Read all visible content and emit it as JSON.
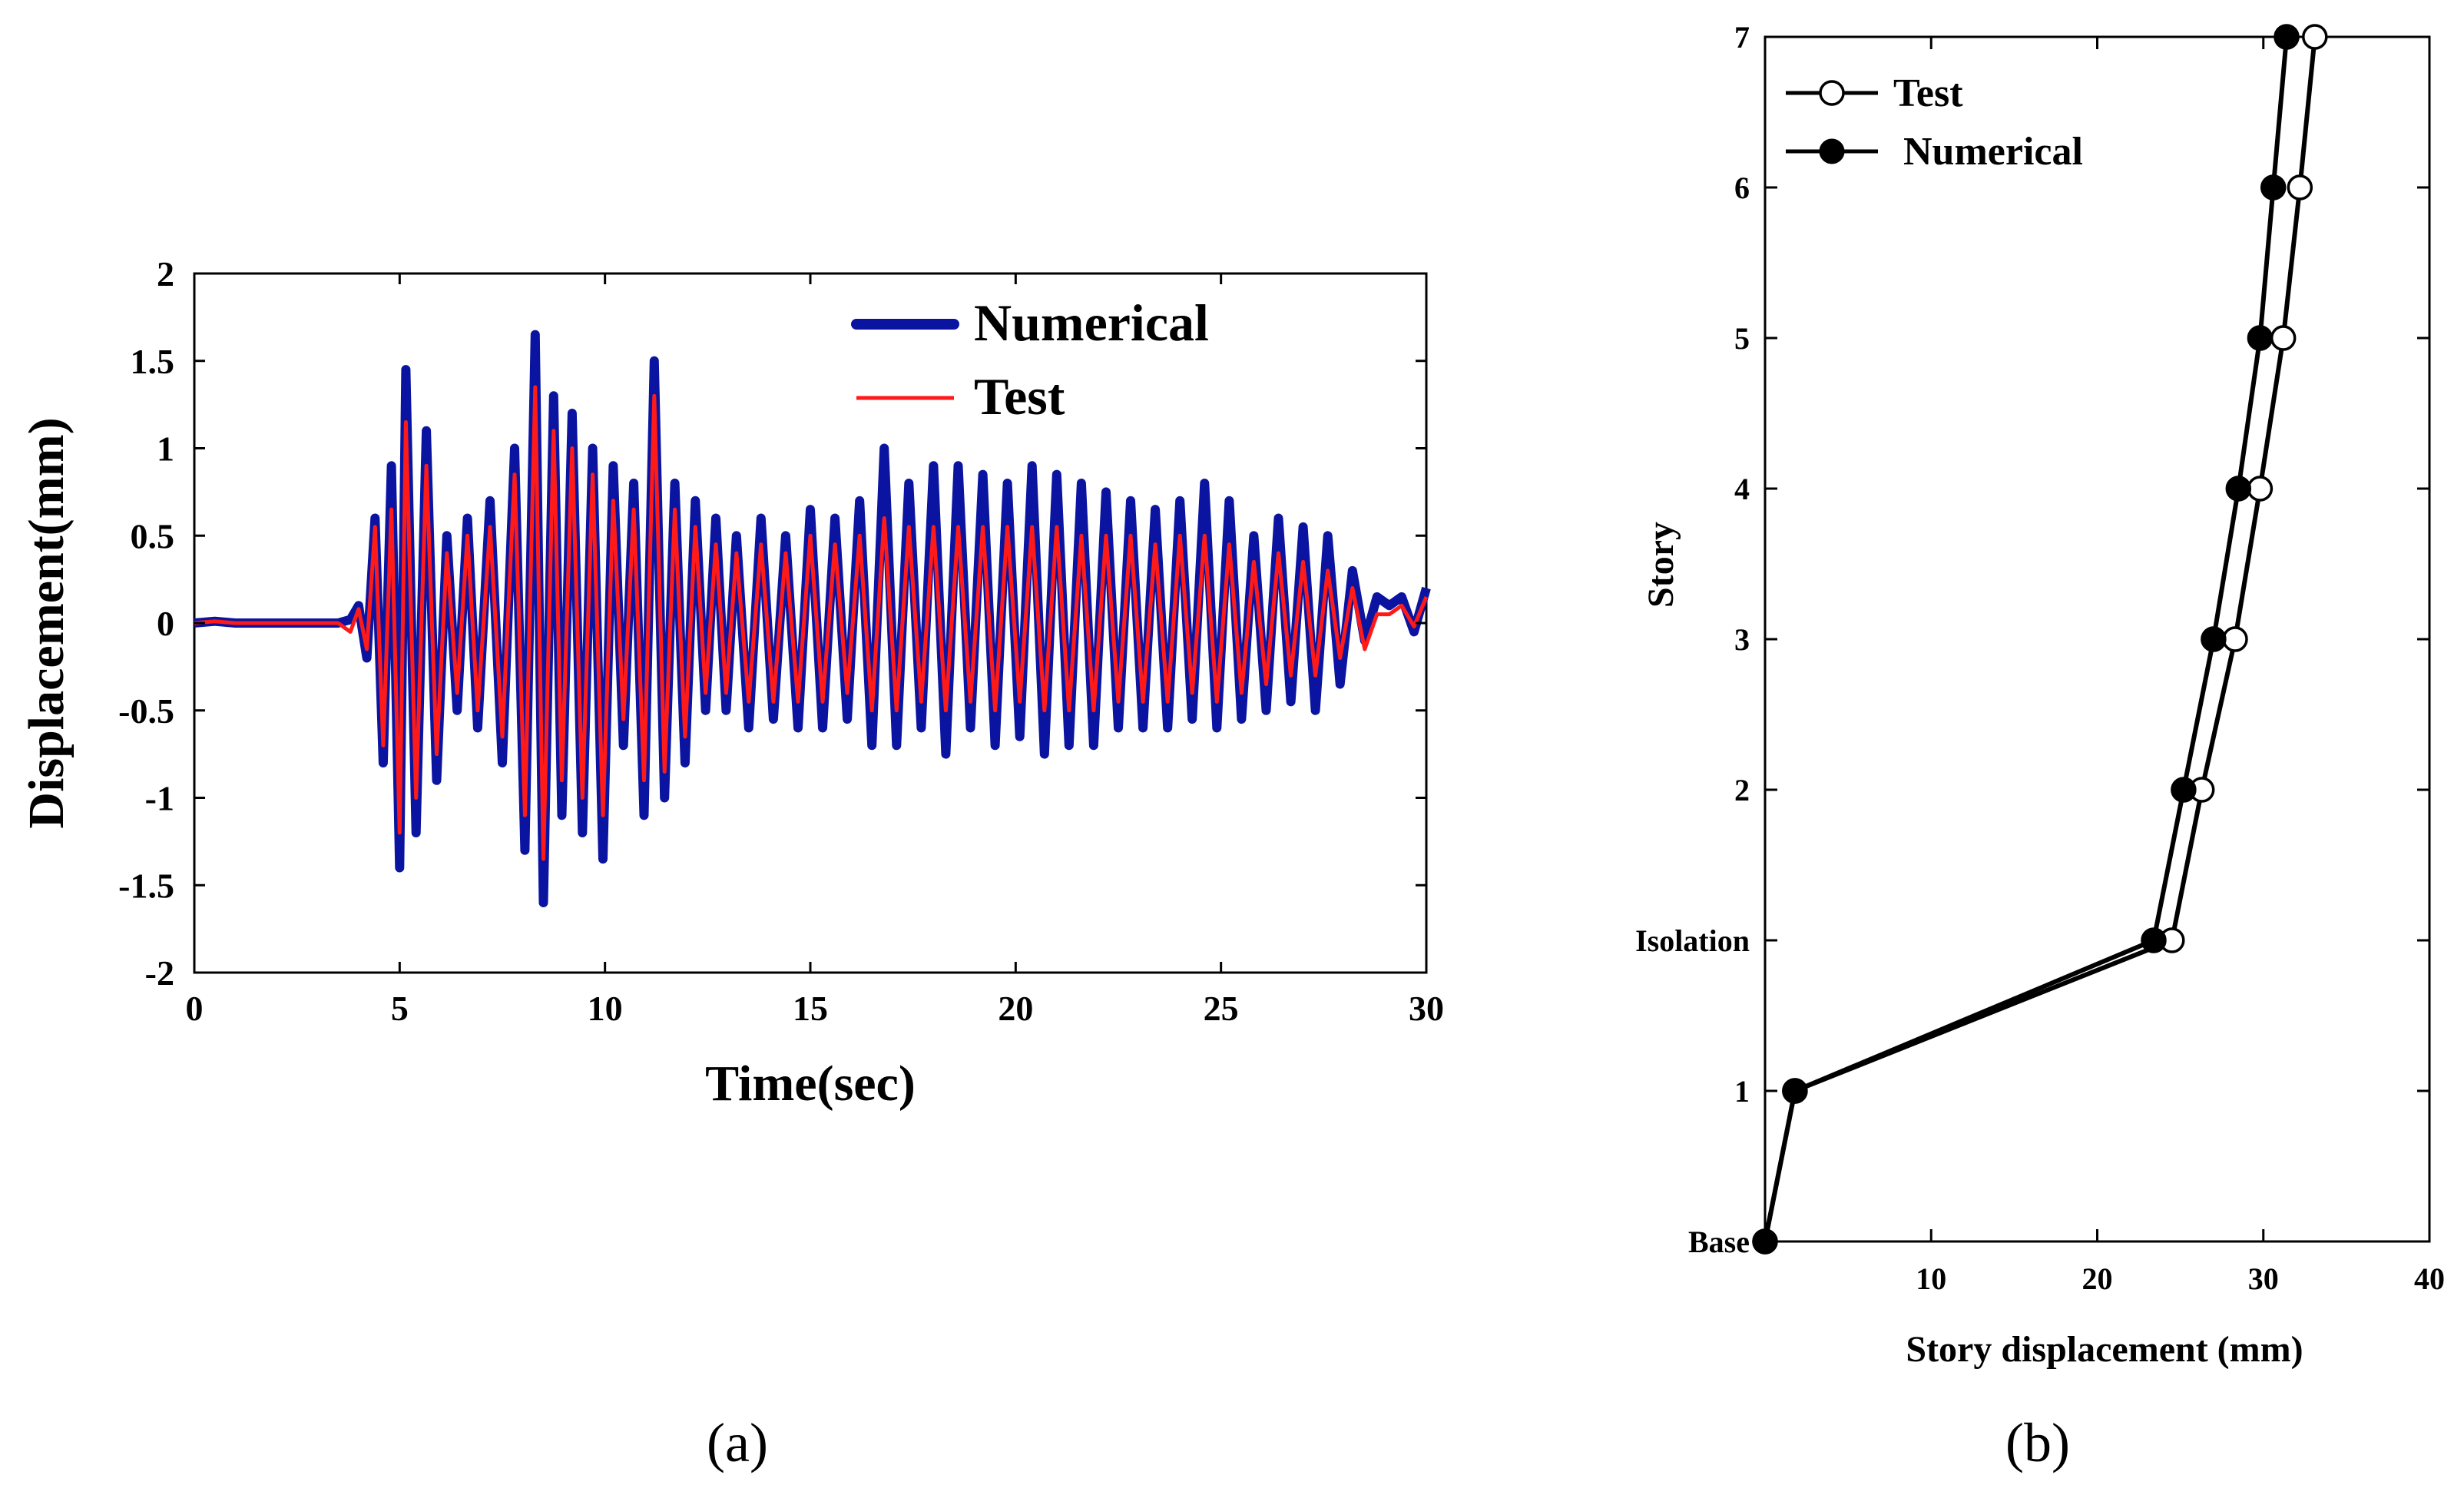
{
  "chart_data": [
    {
      "panel": "a",
      "type": "line",
      "title": "",
      "xlabel": "Time(sec)",
      "ylabel": "Displacement(mm)",
      "xlim": [
        0,
        30
      ],
      "ylim": [
        -2,
        2
      ],
      "xticks": [
        "0",
        "5",
        "10",
        "15",
        "20",
        "25",
        "30"
      ],
      "yticks": [
        "-2",
        "-1.5",
        "-1",
        "-0.5",
        "0",
        "0.5",
        "1",
        "1.5",
        "2"
      ],
      "legend_position": "top-right",
      "series": [
        {
          "name": "Numerical",
          "color": "#0a14a0",
          "x": [
            0,
            0.5,
            1,
            2,
            3,
            3.5,
            3.8,
            4.0,
            4.2,
            4.4,
            4.6,
            4.8,
            5.0,
            5.15,
            5.4,
            5.65,
            5.9,
            6.15,
            6.4,
            6.65,
            6.9,
            7.2,
            7.5,
            7.8,
            8.05,
            8.3,
            8.5,
            8.75,
            8.95,
            9.2,
            9.45,
            9.7,
            9.95,
            10.2,
            10.45,
            10.7,
            10.95,
            11.2,
            11.45,
            11.7,
            11.95,
            12.2,
            12.45,
            12.7,
            12.95,
            13.2,
            13.5,
            13.8,
            14.1,
            14.4,
            14.7,
            15.0,
            15.3,
            15.6,
            15.9,
            16.2,
            16.5,
            16.8,
            17.1,
            17.4,
            17.7,
            18.0,
            18.3,
            18.6,
            18.9,
            19.2,
            19.5,
            19.8,
            20.1,
            20.4,
            20.7,
            21.0,
            21.3,
            21.6,
            21.9,
            22.2,
            22.5,
            22.8,
            23.1,
            23.4,
            23.7,
            24.0,
            24.3,
            24.6,
            24.9,
            25.2,
            25.5,
            25.8,
            26.1,
            26.4,
            26.7,
            27.0,
            27.3,
            27.6,
            27.9,
            28.2,
            28.5,
            28.8,
            29.1,
            29.4,
            29.7,
            30.0
          ],
          "values": [
            0,
            0.01,
            0,
            0,
            0,
            0,
            0.02,
            0.1,
            -0.2,
            0.6,
            -0.8,
            0.9,
            -1.4,
            1.45,
            -1.2,
            1.1,
            -0.9,
            0.5,
            -0.5,
            0.6,
            -0.6,
            0.7,
            -0.8,
            1.0,
            -1.3,
            1.65,
            -1.6,
            1.3,
            -1.1,
            1.2,
            -1.2,
            1.0,
            -1.35,
            0.9,
            -0.7,
            0.8,
            -1.1,
            1.5,
            -1.0,
            0.8,
            -0.8,
            0.7,
            -0.5,
            0.6,
            -0.5,
            0.5,
            -0.6,
            0.6,
            -0.55,
            0.5,
            -0.6,
            0.65,
            -0.6,
            0.6,
            -0.55,
            0.7,
            -0.7,
            1.0,
            -0.7,
            0.8,
            -0.6,
            0.9,
            -0.75,
            0.9,
            -0.6,
            0.85,
            -0.7,
            0.8,
            -0.65,
            0.9,
            -0.75,
            0.85,
            -0.7,
            0.8,
            -0.7,
            0.75,
            -0.6,
            0.7,
            -0.6,
            0.65,
            -0.6,
            0.7,
            -0.55,
            0.8,
            -0.6,
            0.7,
            -0.55,
            0.5,
            -0.5,
            0.6,
            -0.45,
            0.55,
            -0.5,
            0.5,
            -0.35,
            0.3,
            -0.1,
            0.15,
            0.1,
            0.15,
            -0.05,
            0.2
          ]
        },
        {
          "name": "Test",
          "color": "#ff1a1a",
          "x": [
            0,
            0.5,
            1,
            2,
            3,
            3.5,
            3.8,
            4.0,
            4.2,
            4.4,
            4.6,
            4.8,
            5.0,
            5.15,
            5.4,
            5.65,
            5.9,
            6.15,
            6.4,
            6.65,
            6.9,
            7.2,
            7.5,
            7.8,
            8.05,
            8.3,
            8.5,
            8.75,
            8.95,
            9.2,
            9.45,
            9.7,
            9.95,
            10.2,
            10.45,
            10.7,
            10.95,
            11.2,
            11.45,
            11.7,
            11.95,
            12.2,
            12.45,
            12.7,
            12.95,
            13.2,
            13.5,
            13.8,
            14.1,
            14.4,
            14.7,
            15.0,
            15.3,
            15.6,
            15.9,
            16.2,
            16.5,
            16.8,
            17.1,
            17.4,
            17.7,
            18.0,
            18.3,
            18.6,
            18.9,
            19.2,
            19.5,
            19.8,
            20.1,
            20.4,
            20.7,
            21.0,
            21.3,
            21.6,
            21.9,
            22.2,
            22.5,
            22.8,
            23.1,
            23.4,
            23.7,
            24.0,
            24.3,
            24.6,
            24.9,
            25.2,
            25.5,
            25.8,
            26.1,
            26.4,
            26.7,
            27.0,
            27.3,
            27.6,
            27.9,
            28.2,
            28.5,
            28.8,
            29.1,
            29.4,
            29.7,
            30.0
          ],
          "values": [
            0,
            0.01,
            0,
            0,
            0,
            0,
            -0.05,
            0.08,
            -0.15,
            0.55,
            -0.7,
            0.65,
            -1.2,
            1.15,
            -1.0,
            0.9,
            -0.75,
            0.4,
            -0.4,
            0.5,
            -0.5,
            0.55,
            -0.65,
            0.85,
            -1.1,
            1.35,
            -1.35,
            1.1,
            -0.9,
            1.0,
            -1.0,
            0.85,
            -1.1,
            0.7,
            -0.55,
            0.65,
            -0.9,
            1.3,
            -0.85,
            0.65,
            -0.65,
            0.55,
            -0.4,
            0.45,
            -0.4,
            0.4,
            -0.45,
            0.45,
            -0.45,
            0.4,
            -0.45,
            0.5,
            -0.45,
            0.45,
            -0.4,
            0.5,
            -0.5,
            0.6,
            -0.5,
            0.55,
            -0.45,
            0.55,
            -0.5,
            0.55,
            -0.45,
            0.55,
            -0.5,
            0.55,
            -0.45,
            0.55,
            -0.5,
            0.55,
            -0.5,
            0.5,
            -0.5,
            0.5,
            -0.45,
            0.5,
            -0.45,
            0.45,
            -0.45,
            0.5,
            -0.4,
            0.5,
            -0.45,
            0.45,
            -0.4,
            0.35,
            -0.35,
            0.4,
            -0.3,
            0.35,
            -0.3,
            0.3,
            -0.2,
            0.2,
            -0.15,
            0.05,
            0.05,
            0.1,
            -0.02,
            0.15
          ]
        }
      ]
    },
    {
      "panel": "b",
      "type": "line",
      "title": "",
      "xlabel": "Story displacement (mm)",
      "ylabel": "Story",
      "xlim": [
        0,
        40
      ],
      "xticks": [
        "10",
        "20",
        "30",
        "40"
      ],
      "categories": [
        "Base",
        "1",
        "Isolation",
        "2",
        "3",
        "4",
        "5",
        "6",
        "7"
      ],
      "legend_position": "top-left",
      "series": [
        {
          "name": "Test",
          "marker": "open-circle",
          "values": [
            0,
            1.8,
            24.5,
            26.3,
            28.3,
            29.8,
            31.2,
            32.2,
            33.1
          ]
        },
        {
          "name": "Numerical",
          "marker": "filled-circle",
          "values": [
            0,
            1.8,
            23.4,
            25.2,
            27.0,
            28.5,
            29.8,
            30.6,
            31.4
          ]
        }
      ]
    }
  ],
  "panel_labels": {
    "a": "(a)",
    "b": "(b)"
  }
}
